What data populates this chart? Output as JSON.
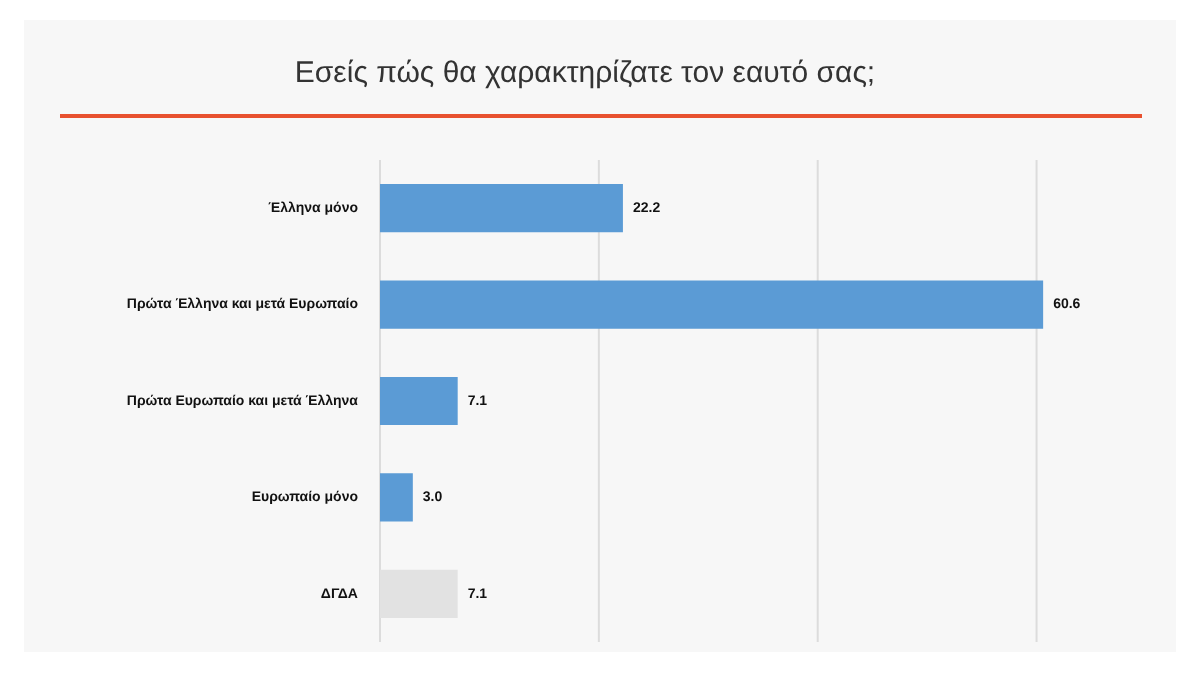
{
  "chart_data": {
    "type": "bar",
    "orientation": "horizontal",
    "title": "Εσείς πώς θα χαρακτηρίζατε τον εαυτό σας;",
    "categories": [
      "Έλληνα μόνο",
      "Πρώτα Έλληνα και μετά Ευρωπαίο",
      "Πρώτα Ευρωπαίο και μετά Έλληνα",
      "Ευρωπαίο μόνο",
      "ΔΓΔΑ"
    ],
    "values": [
      22.2,
      60.6,
      7.1,
      3.0,
      7.1
    ],
    "colors": [
      "#5b9bd5",
      "#5b9bd5",
      "#5b9bd5",
      "#5b9bd5",
      "#e2e2e2"
    ],
    "value_labels": [
      "22.2",
      "60.6",
      "7.1",
      "3.0",
      "7.1"
    ],
    "ref_lines": [
      {
        "axis": "x",
        "value": 0,
        "color": "#dcdcdc"
      },
      {
        "axis": "x",
        "value": 20,
        "color": "#dcdcdc"
      },
      {
        "axis": "x",
        "value": 40,
        "color": "#dcdcdc"
      },
      {
        "axis": "x",
        "value": 60,
        "color": "#dcdcdc"
      }
    ],
    "legend": false,
    "tick_labels": "y"
  }
}
